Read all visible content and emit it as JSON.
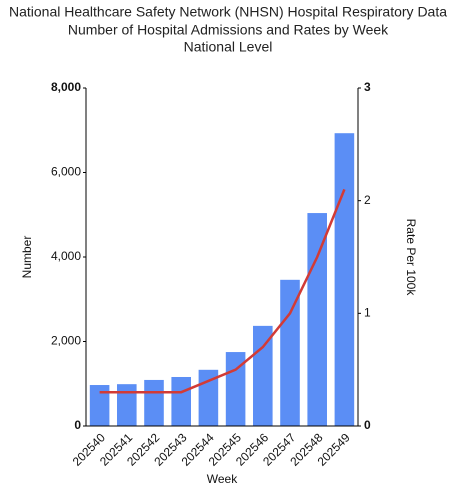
{
  "chart_data": {
    "type": "bar-line",
    "title_lines": [
      "National Healthcare Safety Network (NHSN) Hospital Respiratory Data",
      "Number of Hospital Admissions and Rates by Week",
      "National Level"
    ],
    "xlabel": "Week",
    "ylabel": "Number",
    "y2label": "Rate Per 100k",
    "categories": [
      "202540",
      "202541",
      "202542",
      "202543",
      "202544",
      "202545",
      "202546",
      "202547",
      "202548",
      "202549"
    ],
    "series": [
      {
        "type": "bar",
        "color": "#5b8ef5",
        "values": [
          970,
          990,
          1090,
          1160,
          1330,
          1750,
          2370,
          3460,
          5040,
          6930
        ]
      },
      {
        "type": "line",
        "axis": "y2",
        "color": "#d23b36",
        "values": [
          0.3,
          0.3,
          0.3,
          0.3,
          0.4,
          0.5,
          0.7,
          1.0,
          1.5,
          2.1
        ]
      }
    ],
    "ylim": [
      0,
      8000
    ],
    "yticks": [
      0,
      {
        "value": 2000,
        "label": "2,000"
      },
      {
        "value": 4000,
        "label": "4,000"
      },
      {
        "value": 6000,
        "label": "6,000"
      },
      {
        "value": 8000,
        "label": "8,000"
      }
    ],
    "y2lim": [
      0,
      3
    ],
    "y2ticks": [
      0,
      1,
      2,
      3
    ],
    "grid": false
  }
}
